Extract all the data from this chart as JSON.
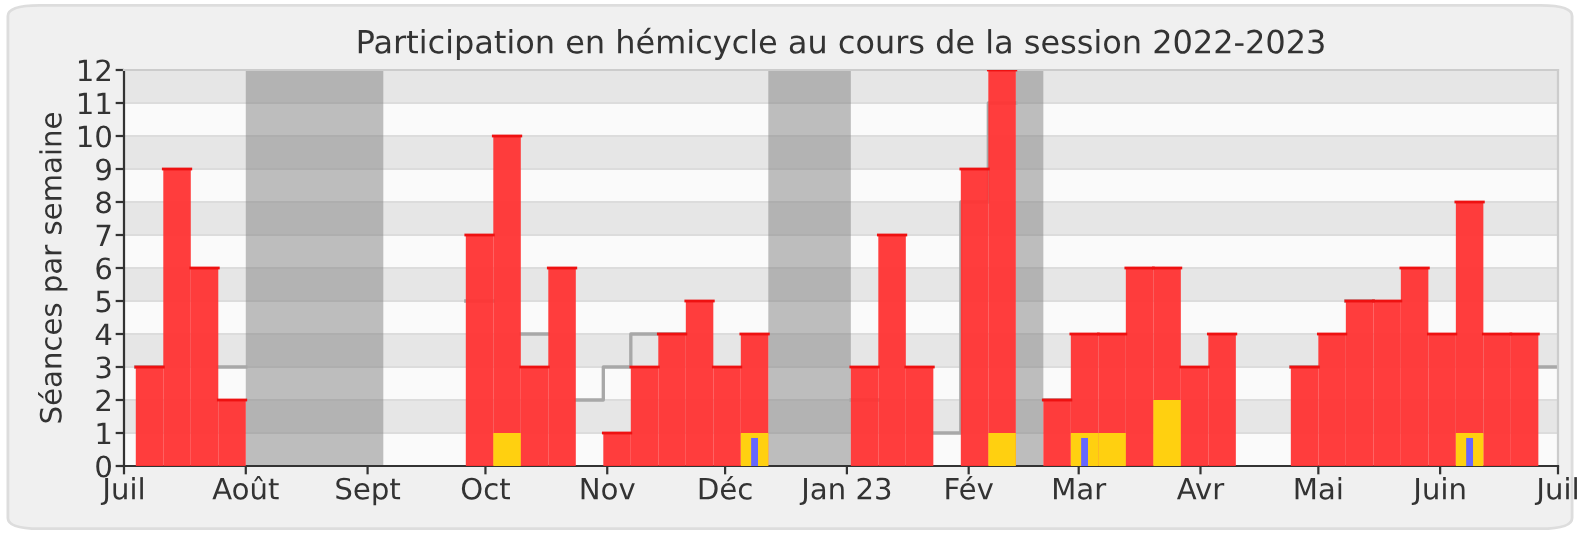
{
  "chart_data": {
    "type": "bar",
    "title": "Participation en hémicycle au cours de la session 2022-2023",
    "ylabel": "Séances par semaine",
    "x": [
      "2022-07-04",
      "2022-07-11",
      "2022-07-18",
      "2022-07-25",
      "2022-08-01",
      "2022-08-08",
      "2022-08-15",
      "2022-08-22",
      "2022-08-29",
      "2022-09-05",
      "2022-09-12",
      "2022-09-19",
      "2022-09-26",
      "2022-10-03",
      "2022-10-10",
      "2022-10-17",
      "2022-10-24",
      "2022-10-31",
      "2022-11-07",
      "2022-11-14",
      "2022-11-21",
      "2022-11-28",
      "2022-12-05",
      "2022-12-12",
      "2022-12-19",
      "2022-12-26",
      "2023-01-02",
      "2023-01-09",
      "2023-01-16",
      "2023-01-23",
      "2023-01-30",
      "2023-02-06",
      "2023-02-13",
      "2023-02-20",
      "2023-02-27",
      "2023-03-06",
      "2023-03-13",
      "2023-03-20",
      "2023-03-27",
      "2023-04-03",
      "2023-04-10",
      "2023-04-17",
      "2023-04-24",
      "2023-05-01",
      "2023-05-08",
      "2023-05-15",
      "2023-05-22",
      "2023-05-29",
      "2023-06-05",
      "2023-06-12",
      "2023-06-19"
    ],
    "series": [
      {
        "color": "#ff3333",
        "values": [
          3,
          9,
          6,
          2,
          null,
          null,
          null,
          null,
          null,
          null,
          null,
          null,
          7,
          10,
          3,
          6,
          null,
          1,
          3,
          4,
          5,
          3,
          4,
          null,
          null,
          null,
          3,
          7,
          3,
          null,
          9,
          12,
          null,
          2,
          4,
          4,
          6,
          6,
          3,
          4,
          null,
          null,
          3,
          4,
          5,
          5,
          6,
          4,
          8,
          4,
          4
        ]
      },
      {
        "type": "step",
        "color": "#a8a8a8",
        "x": [
          "2022-07-04",
          "2022-07-11",
          "2022-07-18",
          "2022-07-25",
          "2022-08-01",
          "2022-08-08",
          "2022-08-15",
          "2022-08-22",
          "2022-08-29",
          "2022-09-05",
          "2022-09-12",
          "2022-09-19",
          "2022-09-26",
          "2022-10-03",
          "2022-10-10",
          "2022-10-17",
          "2022-10-24",
          "2022-10-31",
          "2022-11-07",
          "2022-11-14",
          "2022-11-21",
          "2022-11-28",
          "2022-12-05",
          "2022-12-12",
          "2022-12-19",
          "2022-12-26",
          "2023-01-02",
          "2023-01-09",
          "2023-01-16",
          "2023-01-23",
          "2023-01-30",
          "2023-02-06",
          "2023-02-13",
          "2023-02-20",
          "2023-02-27",
          "2023-03-06",
          "2023-03-13",
          "2023-03-20",
          "2023-03-27",
          "2023-04-03",
          "2023-04-10",
          "2023-04-17",
          "2023-04-24",
          "2023-05-01",
          "2023-05-08",
          "2023-05-15",
          "2023-05-22",
          "2023-05-29",
          "2023-06-05",
          "2023-06-12",
          "2023-06-19",
          "2023-06-26",
          "2023-07-01"
        ],
        "values": [
          3,
          null,
          null,
          3,
          null,
          null,
          null,
          null,
          null,
          null,
          null,
          null,
          5,
          null,
          4,
          null,
          2,
          3,
          4,
          4,
          null,
          null,
          null,
          null,
          null,
          null,
          2,
          null,
          null,
          1,
          8,
          11,
          null,
          2,
          null,
          null,
          null,
          null,
          null,
          null,
          null,
          null,
          3,
          null,
          5,
          null,
          null,
          null,
          null,
          null,
          null,
          3,
          3
        ]
      },
      {
        "type": "bar",
        "color": "#ffd010",
        "x": [
          "2022-10-03",
          "2022-12-05",
          "2023-02-06",
          "2023-02-27",
          "2023-03-06",
          "2023-03-20",
          "2023-06-05"
        ],
        "values": [
          1,
          1,
          1,
          1,
          1,
          2,
          1
        ]
      },
      {
        "type": "bar",
        "color": "#6666ff",
        "x": [
          "2022-12-05",
          "2023-02-27",
          "2023-06-05"
        ],
        "values": [
          0.85,
          0.85,
          0.85
        ]
      }
    ],
    "bands": [
      {
        "axis": "x",
        "from": "2022-08-01",
        "to": "2022-09-05",
        "color": "#808080"
      },
      {
        "axis": "x",
        "from": "2022-12-12",
        "to": "2023-01-02",
        "color": "#808080"
      },
      {
        "axis": "x",
        "from": "2023-02-13",
        "to": "2023-02-20",
        "color": "#808080"
      }
    ],
    "xlim": [
      "2022-07-01",
      "2023-07-01"
    ],
    "xticks": [
      {
        "value": "2022-07-01",
        "label": "Juil"
      },
      {
        "value": "2022-08-01",
        "label": "Août"
      },
      {
        "value": "2022-09-01",
        "label": "Sept"
      },
      {
        "value": "2022-10-01",
        "label": "Oct"
      },
      {
        "value": "2022-11-01",
        "label": "Nov"
      },
      {
        "value": "2022-12-01",
        "label": "Déc"
      },
      {
        "value": "2023-01-01",
        "label": "Jan 23"
      },
      {
        "value": "2023-02-01",
        "label": "Fév"
      },
      {
        "value": "2023-03-01",
        "label": "Mar"
      },
      {
        "value": "2023-04-01",
        "label": "Avr"
      },
      {
        "value": "2023-05-01",
        "label": "Mai"
      },
      {
        "value": "2023-06-01",
        "label": "Juin"
      },
      {
        "value": "2023-07-01",
        "label": "Juil"
      }
    ],
    "ylim": [
      0,
      12
    ],
    "yticks": [
      0,
      1,
      2,
      3,
      4,
      5,
      6,
      7,
      8,
      9,
      10,
      11,
      12
    ],
    "grid": "y",
    "legend": false
  }
}
